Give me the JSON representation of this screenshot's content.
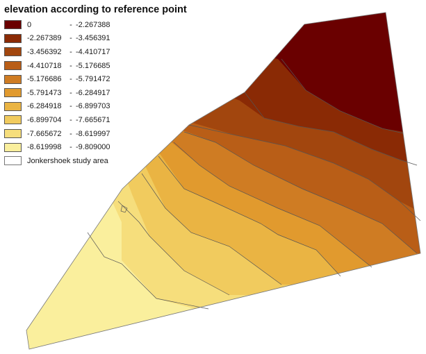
{
  "legend": {
    "title": "elevation according to reference point",
    "classes": [
      {
        "low": "0",
        "high": "-2.267388",
        "color": "#6a0000"
      },
      {
        "low": "-2.267389",
        "high": "-3.456391",
        "color": "#8a2a05"
      },
      {
        "low": "-3.456392",
        "high": "-4.410717",
        "color": "#a2460e"
      },
      {
        "low": "-4.410718",
        "high": "-5.176685",
        "color": "#b95e17"
      },
      {
        "low": "-5.176686",
        "high": "-5.791472",
        "color": "#cf7c23"
      },
      {
        "low": "-5.791473",
        "high": "-6.284917",
        "color": "#e19a2e"
      },
      {
        "low": "-6.284918",
        "high": "-6.899703",
        "color": "#eab443"
      },
      {
        "low": "-6.899704",
        "high": "-7.665671",
        "color": "#f1cb5e"
      },
      {
        "low": "-7.665672",
        "high": "-8.619997",
        "color": "#f6de7c"
      },
      {
        "low": "-8.619998",
        "high": "-9.809000",
        "color": "#faef9d"
      }
    ],
    "study_area": {
      "label": "Jonkershoek study area",
      "fill": "#ffffff",
      "outline": "#777777"
    },
    "separator": "-"
  },
  "map": {
    "contour_line_color": "#555555"
  }
}
